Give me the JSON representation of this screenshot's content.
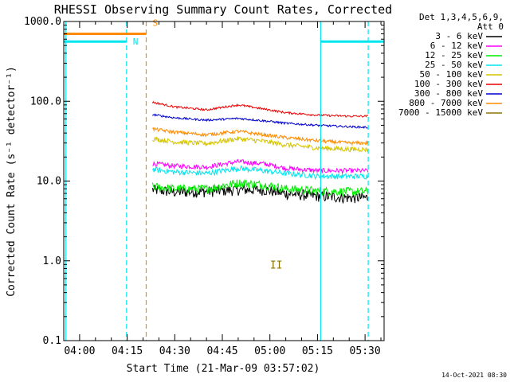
{
  "chart_data": {
    "type": "line",
    "title": "RHESSI Observing Summary Count Rates, Corrected",
    "xlabel": "Start Time (21-Mar-09 03:57:02)",
    "ylabel": "Corrected Count Rate (s⁻¹ detector⁻¹)",
    "xlim": [
      -5.0,
      96.0
    ],
    "ylim": [
      0.1,
      1000.0
    ],
    "yscale": "log",
    "x_tick_labels": [
      "04:00",
      "04:15",
      "04:30",
      "04:45",
      "05:00",
      "05:15",
      "05:30"
    ],
    "x_tick_minutes": [
      0,
      15,
      30,
      45,
      60,
      75,
      90
    ],
    "y_tick_labels": [
      "0.1",
      "1.0",
      "10.0",
      "100.0",
      "1000.0"
    ],
    "y_tick_values": [
      0.1,
      1.0,
      10.0,
      100.0,
      1000.0
    ],
    "legend_header": [
      "Det 1,3,4,5,6,9,",
      "Att 0"
    ],
    "legend_position": "right",
    "grid": false,
    "timestamp": "14-Oct-2021 08:30",
    "flags": [
      {
        "label": "N",
        "color": "#00e5ee",
        "level": 560.0,
        "segments": [
          [
            -5.0,
            14.8
          ],
          [
            76.0,
            96.0
          ]
        ]
      },
      {
        "label": "S",
        "color": "#ff8c00",
        "level": 700.0,
        "segments": [
          [
            -5.0,
            21.0
          ]
        ]
      }
    ],
    "boundaries": [
      {
        "minute": -4.3,
        "color": "#00e5ee",
        "style": "solid"
      },
      {
        "minute": 14.8,
        "color": "#00e5ee",
        "style": "dashed"
      },
      {
        "minute": 21.0,
        "color": "#ff8c00",
        "style": "dashed"
      },
      {
        "minute": 76.0,
        "color": "#00e5ee",
        "style": "solid"
      },
      {
        "minute": 91.0,
        "color": "#00e5ee",
        "style": "dashed"
      }
    ],
    "annotations": [
      {
        "text": "II",
        "minute": 62.0,
        "value": 0.8,
        "color": "#8b7500"
      }
    ],
    "series": [
      {
        "name": "3 - 6 keV",
        "color": "#000000",
        "x": [
          23.0,
          30.0,
          40.0,
          50.0,
          58.0,
          65.0,
          75.0,
          85.0,
          91.0
        ],
        "values": [
          7.8,
          7.3,
          7.4,
          7.8,
          7.8,
          7.0,
          6.5,
          6.2,
          6.2
        ]
      },
      {
        "name": "6 - 12 keV",
        "color": "#ff00ff",
        "x": [
          23.0,
          30.0,
          40.0,
          50.0,
          58.0,
          65.0,
          75.0,
          85.0,
          91.0
        ],
        "values": [
          16.5,
          15.5,
          15.0,
          17.5,
          16.5,
          14.5,
          13.5,
          13.5,
          13.5
        ]
      },
      {
        "name": "12 - 25 keV",
        "color": "#00ee00",
        "x": [
          23.0,
          30.0,
          40.0,
          50.0,
          58.0,
          65.0,
          75.0,
          85.0,
          91.0
        ],
        "values": [
          8.5,
          8.0,
          8.0,
          9.5,
          9.0,
          8.0,
          7.5,
          7.4,
          7.4
        ]
      },
      {
        "name": "25 - 50 keV",
        "color": "#00e5ee",
        "x": [
          23.0,
          30.0,
          40.0,
          50.0,
          58.0,
          65.0,
          75.0,
          85.0,
          91.0
        ],
        "values": [
          14.0,
          13.0,
          12.5,
          14.5,
          13.5,
          12.5,
          11.5,
          11.5,
          11.5
        ]
      },
      {
        "name": "50 - 100 keV",
        "color": "#d4c400",
        "x": [
          23.0,
          30.0,
          40.0,
          50.0,
          58.0,
          65.0,
          75.0,
          85.0,
          91.0
        ],
        "values": [
          34.0,
          31.0,
          29.5,
          34.0,
          31.5,
          28.5,
          26.0,
          25.0,
          25.0
        ]
      },
      {
        "name": "100 - 300 keV",
        "color": "#ee0000",
        "x": [
          23.0,
          30.0,
          40.0,
          50.0,
          58.0,
          65.0,
          75.0,
          85.0,
          91.0
        ],
        "values": [
          97.0,
          85.0,
          78.0,
          90.0,
          80.0,
          72.0,
          67.0,
          65.0,
          65.0
        ]
      },
      {
        "name": "300 - 800 keV",
        "color": "#0000cd",
        "x": [
          23.0,
          30.0,
          40.0,
          50.0,
          58.0,
          65.0,
          75.0,
          85.0,
          91.0
        ],
        "values": [
          68.0,
          62.0,
          58.0,
          61.0,
          57.0,
          53.0,
          50.0,
          48.0,
          47.0
        ]
      },
      {
        "name": "800 - 7000 keV",
        "color": "#ff8c00",
        "x": [
          23.0,
          30.0,
          40.0,
          50.0,
          58.0,
          65.0,
          75.0,
          85.0,
          91.0
        ],
        "values": [
          45.0,
          41.0,
          38.0,
          42.0,
          38.0,
          35.0,
          32.0,
          30.0,
          30.0
        ]
      },
      {
        "name": "7000 - 15000 keV",
        "color": "#8b7500",
        "x": [
          23.0,
          30.0,
          40.0,
          50.0,
          58.0,
          65.0,
          75.0,
          85.0,
          91.0
        ],
        "values": null
      }
    ]
  }
}
